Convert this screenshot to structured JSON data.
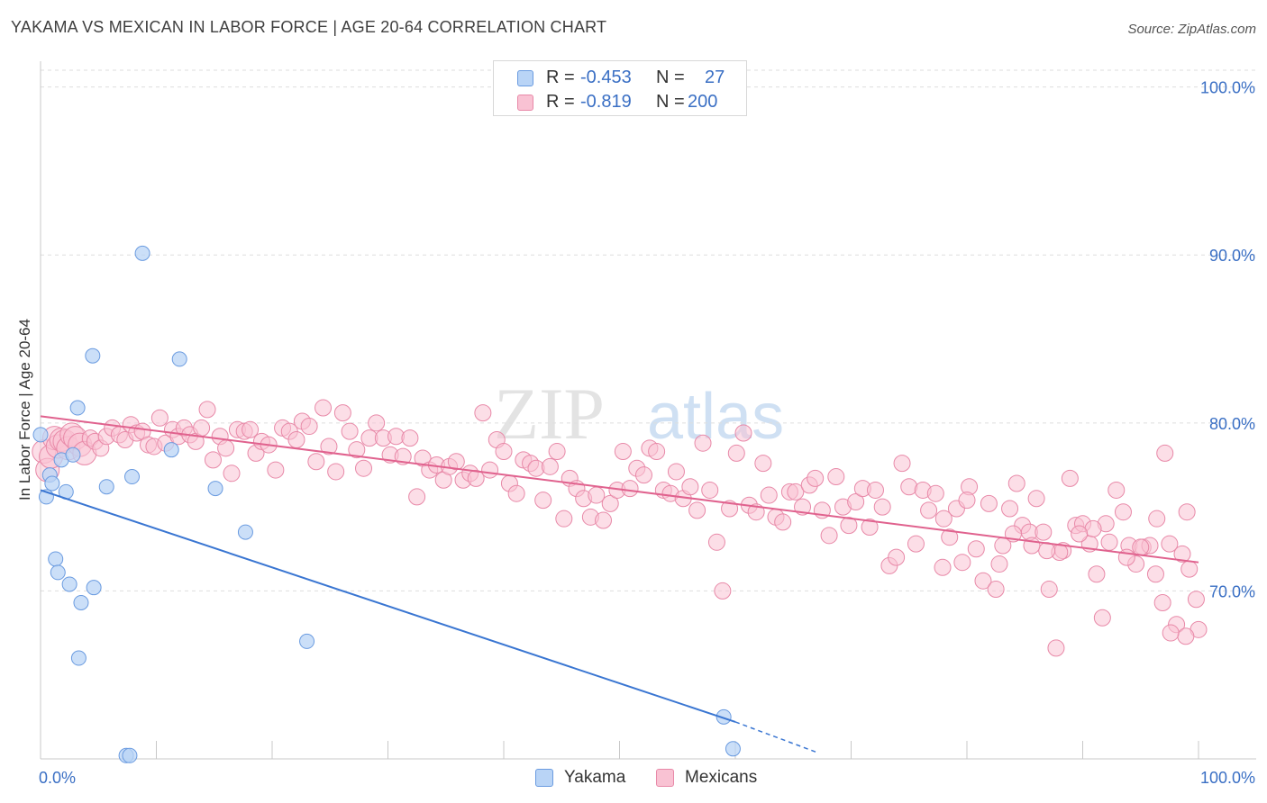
{
  "header": {
    "title": "YAKAMA VS MEXICAN IN LABOR FORCE | AGE 20-64 CORRELATION CHART",
    "source": "Source: ZipAtlas.com"
  },
  "legend": {
    "rows": [
      {
        "r_label": "R =",
        "r_value": "-0.453",
        "n_label": "N =",
        "n_value": "27",
        "color": "#b9d4f6",
        "border": "#6a9be0"
      },
      {
        "r_label": "R =",
        "r_value": "-0.819",
        "n_label": "N =",
        "n_value": "200",
        "color": "#f9c2d3",
        "border": "#e889a8"
      }
    ]
  },
  "bottom_legend": [
    {
      "label": "Yakama",
      "color": "#b9d4f6",
      "border": "#6a9be0"
    },
    {
      "label": "Mexicans",
      "color": "#f9c2d3",
      "border": "#e889a8"
    }
  ],
  "watermark": {
    "zip": "ZIP",
    "atlas": "atlas"
  },
  "chart_data": {
    "type": "scatter",
    "title": "YAKAMA VS MEXICAN IN LABOR FORCE | AGE 20-64 CORRELATION CHART",
    "ylabel": "In Labor Force | Age 20-64",
    "xlabel": "",
    "x_tick_labels": [
      "0.0%",
      "100.0%"
    ],
    "y_tick_labels": [
      "70.0%",
      "80.0%",
      "90.0%",
      "100.0%"
    ],
    "y_ticks": [
      70,
      80,
      90,
      100
    ],
    "xlim": [
      0,
      100
    ],
    "ylim": [
      60,
      101
    ],
    "grid": true,
    "legend_position": "top-center",
    "colors": {
      "yakama": "#3a76d2",
      "mexicans": "#e0628e",
      "tick_text": "#3a6fc4"
    },
    "series": [
      {
        "name": "Yakama",
        "color": "#b9d4f6",
        "trend": {
          "x0": 0,
          "y0": 76.0,
          "x1": 60,
          "y1": 62.2,
          "dashed_to_x": 67,
          "dashed_to_y": 60.4
        },
        "points": [
          [
            0.0,
            79.3
          ],
          [
            0.5,
            75.6
          ],
          [
            0.8,
            76.9
          ],
          [
            1.0,
            76.4
          ],
          [
            1.3,
            71.9
          ],
          [
            1.5,
            71.1
          ],
          [
            1.8,
            77.8
          ],
          [
            2.2,
            75.9
          ],
          [
            2.5,
            70.4
          ],
          [
            2.8,
            78.1
          ],
          [
            3.2,
            80.9
          ],
          [
            3.3,
            66.0
          ],
          [
            3.5,
            69.3
          ],
          [
            4.5,
            84.0
          ],
          [
            4.6,
            70.2
          ],
          [
            5.7,
            76.2
          ],
          [
            7.4,
            60.2
          ],
          [
            7.7,
            60.2
          ],
          [
            7.9,
            76.8
          ],
          [
            8.8,
            90.1
          ],
          [
            11.3,
            78.4
          ],
          [
            12.0,
            83.8
          ],
          [
            15.1,
            76.1
          ],
          [
            17.7,
            73.5
          ],
          [
            23.0,
            67.0
          ],
          [
            59.0,
            62.5
          ],
          [
            59.8,
            60.6
          ]
        ]
      },
      {
        "name": "Mexicans",
        "color": "#f9c2d3",
        "trend": {
          "x0": 0,
          "y0": 80.4,
          "x1": 100,
          "y1": 71.7
        },
        "points": [
          [
            0.3,
            78.3
          ],
          [
            0.6,
            77.2
          ],
          [
            0.9,
            78.0
          ],
          [
            1.2,
            79.1
          ],
          [
            1.5,
            78.6
          ],
          [
            1.8,
            79.0
          ],
          [
            2.1,
            78.9
          ],
          [
            2.4,
            78.5
          ],
          [
            2.7,
            79.3
          ],
          [
            3.0,
            79.1
          ],
          [
            3.4,
            78.7
          ],
          [
            3.8,
            78.2
          ],
          [
            4.3,
            79.1
          ],
          [
            4.7,
            78.9
          ],
          [
            5.2,
            78.5
          ],
          [
            5.7,
            79.2
          ],
          [
            6.2,
            79.7
          ],
          [
            6.8,
            79.3
          ],
          [
            7.3,
            79.0
          ],
          [
            7.8,
            79.9
          ],
          [
            8.3,
            79.4
          ],
          [
            8.8,
            79.5
          ],
          [
            9.3,
            78.7
          ],
          [
            9.8,
            78.6
          ],
          [
            10.3,
            80.3
          ],
          [
            10.8,
            78.8
          ],
          [
            11.4,
            79.6
          ],
          [
            11.9,
            79.2
          ],
          [
            12.4,
            79.7
          ],
          [
            12.9,
            79.3
          ],
          [
            13.4,
            78.9
          ],
          [
            13.9,
            79.7
          ],
          [
            14.4,
            80.8
          ],
          [
            14.9,
            77.8
          ],
          [
            15.5,
            79.2
          ],
          [
            16.0,
            78.5
          ],
          [
            16.5,
            77.0
          ],
          [
            17.0,
            79.6
          ],
          [
            17.6,
            79.5
          ],
          [
            18.1,
            79.6
          ],
          [
            18.6,
            78.2
          ],
          [
            19.1,
            78.9
          ],
          [
            19.7,
            78.7
          ],
          [
            20.3,
            77.2
          ],
          [
            20.9,
            79.7
          ],
          [
            21.5,
            79.5
          ],
          [
            22.1,
            79.0
          ],
          [
            22.6,
            80.1
          ],
          [
            23.2,
            79.8
          ],
          [
            23.8,
            77.7
          ],
          [
            24.4,
            80.9
          ],
          [
            24.9,
            78.6
          ],
          [
            25.5,
            77.1
          ],
          [
            26.1,
            80.6
          ],
          [
            26.7,
            79.5
          ],
          [
            27.3,
            78.4
          ],
          [
            27.9,
            77.3
          ],
          [
            28.4,
            79.1
          ],
          [
            29.0,
            80.0
          ],
          [
            29.6,
            79.1
          ],
          [
            30.2,
            78.1
          ],
          [
            30.7,
            79.2
          ],
          [
            31.3,
            78.0
          ],
          [
            31.9,
            79.1
          ],
          [
            32.5,
            75.6
          ],
          [
            33.0,
            77.9
          ],
          [
            33.6,
            77.2
          ],
          [
            34.2,
            77.5
          ],
          [
            34.8,
            76.6
          ],
          [
            35.3,
            77.4
          ],
          [
            35.9,
            77.7
          ],
          [
            36.5,
            76.6
          ],
          [
            37.1,
            77.0
          ],
          [
            37.6,
            76.7
          ],
          [
            38.2,
            80.6
          ],
          [
            38.8,
            77.2
          ],
          [
            39.4,
            79.0
          ],
          [
            40.0,
            78.3
          ],
          [
            40.5,
            76.4
          ],
          [
            41.1,
            75.8
          ],
          [
            41.7,
            77.8
          ],
          [
            42.3,
            77.6
          ],
          [
            42.8,
            77.3
          ],
          [
            43.4,
            75.4
          ],
          [
            44.0,
            77.4
          ],
          [
            44.6,
            78.3
          ],
          [
            45.2,
            74.3
          ],
          [
            45.7,
            76.7
          ],
          [
            46.3,
            76.1
          ],
          [
            46.9,
            75.5
          ],
          [
            47.5,
            74.4
          ],
          [
            48.0,
            75.7
          ],
          [
            48.6,
            74.2
          ],
          [
            49.2,
            75.2
          ],
          [
            49.8,
            76.0
          ],
          [
            50.3,
            78.3
          ],
          [
            50.9,
            76.1
          ],
          [
            51.5,
            77.3
          ],
          [
            52.1,
            76.9
          ],
          [
            52.6,
            78.5
          ],
          [
            53.2,
            78.3
          ],
          [
            53.8,
            76.0
          ],
          [
            54.4,
            75.8
          ],
          [
            54.9,
            77.1
          ],
          [
            55.5,
            75.5
          ],
          [
            56.1,
            76.2
          ],
          [
            56.7,
            74.8
          ],
          [
            57.2,
            78.8
          ],
          [
            57.8,
            76.0
          ],
          [
            58.4,
            72.9
          ],
          [
            58.9,
            70.0
          ],
          [
            59.5,
            74.9
          ],
          [
            60.1,
            78.2
          ],
          [
            60.7,
            79.4
          ],
          [
            61.2,
            75.1
          ],
          [
            61.8,
            74.7
          ],
          [
            62.4,
            77.6
          ],
          [
            62.9,
            75.7
          ],
          [
            63.5,
            74.4
          ],
          [
            64.1,
            74.1
          ],
          [
            64.7,
            75.9
          ],
          [
            65.2,
            75.9
          ],
          [
            65.8,
            75.0
          ],
          [
            66.4,
            76.3
          ],
          [
            66.9,
            76.7
          ],
          [
            67.5,
            74.8
          ],
          [
            68.1,
            73.3
          ],
          [
            68.7,
            76.8
          ],
          [
            69.3,
            75.0
          ],
          [
            69.8,
            73.9
          ],
          [
            70.4,
            75.3
          ],
          [
            71.0,
            76.1
          ],
          [
            71.6,
            73.8
          ],
          [
            72.1,
            76.0
          ],
          [
            72.7,
            75.0
          ],
          [
            73.3,
            71.5
          ],
          [
            73.9,
            72.0
          ],
          [
            74.4,
            77.6
          ],
          [
            75.0,
            76.2
          ],
          [
            75.6,
            72.8
          ],
          [
            76.2,
            76.0
          ],
          [
            76.7,
            74.8
          ],
          [
            77.3,
            75.8
          ],
          [
            77.9,
            71.4
          ],
          [
            78.5,
            73.2
          ],
          [
            79.1,
            74.9
          ],
          [
            79.6,
            71.7
          ],
          [
            80.2,
            76.2
          ],
          [
            80.8,
            72.5
          ],
          [
            81.4,
            70.6
          ],
          [
            81.9,
            75.2
          ],
          [
            82.5,
            70.1
          ],
          [
            83.1,
            72.7
          ],
          [
            83.7,
            74.9
          ],
          [
            84.3,
            76.4
          ],
          [
            84.8,
            73.9
          ],
          [
            85.4,
            73.5
          ],
          [
            86.0,
            75.5
          ],
          [
            86.6,
            73.5
          ],
          [
            87.1,
            70.1
          ],
          [
            87.7,
            66.6
          ],
          [
            88.3,
            72.4
          ],
          [
            88.9,
            76.7
          ],
          [
            89.4,
            73.9
          ],
          [
            90.0,
            74.0
          ],
          [
            90.6,
            72.8
          ],
          [
            91.2,
            71.0
          ],
          [
            91.7,
            68.4
          ],
          [
            92.3,
            72.9
          ],
          [
            92.9,
            76.0
          ],
          [
            93.5,
            74.7
          ],
          [
            94.0,
            72.7
          ],
          [
            94.6,
            71.6
          ],
          [
            95.2,
            72.6
          ],
          [
            95.8,
            72.7
          ],
          [
            96.3,
            71.0
          ],
          [
            96.9,
            69.3
          ],
          [
            97.5,
            72.8
          ],
          [
            98.1,
            68.0
          ],
          [
            98.6,
            72.2
          ],
          [
            99.2,
            71.3
          ],
          [
            99.8,
            69.5
          ],
          [
            100.0,
            67.7
          ],
          [
            98.9,
            67.3
          ],
          [
            97.6,
            67.5
          ],
          [
            96.4,
            74.3
          ],
          [
            95.0,
            72.6
          ],
          [
            93.8,
            72.0
          ],
          [
            92.0,
            74.0
          ],
          [
            90.9,
            73.7
          ],
          [
            89.7,
            73.4
          ],
          [
            88.0,
            72.3
          ],
          [
            86.9,
            72.4
          ],
          [
            85.6,
            72.7
          ],
          [
            84.0,
            73.4
          ],
          [
            82.8,
            71.6
          ],
          [
            80.0,
            75.4
          ],
          [
            78.0,
            74.3
          ],
          [
            99.0,
            74.7
          ],
          [
            97.1,
            78.2
          ]
        ]
      }
    ]
  }
}
